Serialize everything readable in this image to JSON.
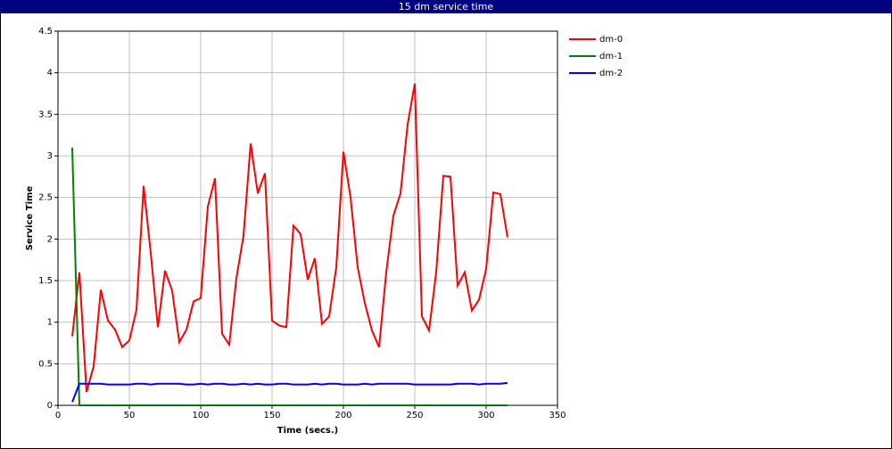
{
  "chart_data": {
    "type": "line",
    "title": "15 dm service time",
    "x_label": "Time (secs.)",
    "y_label": "Service Time",
    "x": [
      10,
      15,
      20,
      25,
      30,
      35,
      40,
      45,
      50,
      55,
      60,
      65,
      70,
      75,
      80,
      85,
      90,
      95,
      100,
      105,
      110,
      115,
      120,
      125,
      130,
      135,
      140,
      145,
      150,
      155,
      160,
      165,
      170,
      175,
      180,
      185,
      190,
      195,
      200,
      205,
      210,
      215,
      220,
      225,
      230,
      235,
      240,
      245,
      250,
      255,
      260,
      265,
      270,
      275,
      280,
      285,
      290,
      295,
      300,
      305,
      310,
      315
    ],
    "series": [
      {
        "name": "dm-0",
        "color": "#ff0000",
        "values": [
          0.83,
          1.6,
          0.16,
          0.47,
          1.39,
          1.02,
          0.91,
          0.7,
          0.78,
          1.15,
          2.64,
          1.83,
          0.94,
          1.62,
          1.38,
          0.76,
          0.91,
          1.25,
          1.29,
          2.39,
          2.73,
          0.86,
          0.73,
          1.53,
          2.04,
          3.15,
          2.55,
          2.79,
          1.02,
          0.96,
          0.94,
          2.16,
          2.06,
          1.51,
          1.77,
          0.98,
          1.07,
          1.66,
          3.05,
          2.5,
          1.66,
          1.23,
          0.9,
          0.7,
          1.6,
          2.28,
          2.55,
          3.38,
          3.87,
          1.07,
          0.9,
          1.6,
          2.76,
          2.75,
          1.44,
          1.6,
          1.14,
          1.27,
          1.64,
          2.56,
          2.54,
          2.02
        ]
      },
      {
        "name": "dm-1",
        "color": "#008000",
        "values": [
          3.1,
          0,
          0,
          0,
          0,
          0,
          0,
          0,
          0,
          0,
          0,
          0,
          0,
          0,
          0,
          0,
          0,
          0,
          0,
          0,
          0,
          0,
          0,
          0,
          0,
          0,
          0,
          0,
          0,
          0,
          0,
          0,
          0,
          0,
          0,
          0,
          0,
          0,
          0,
          0,
          0,
          0,
          0,
          0,
          0,
          0,
          0,
          0,
          0,
          0,
          0,
          0,
          0,
          0,
          0,
          0,
          0,
          0,
          0,
          0,
          0,
          0
        ]
      },
      {
        "name": "dm-2",
        "color": "#0000ff",
        "values": [
          0.04,
          0.26,
          0.26,
          0.26,
          0.26,
          0.25,
          0.25,
          0.25,
          0.25,
          0.26,
          0.26,
          0.25,
          0.26,
          0.26,
          0.26,
          0.26,
          0.25,
          0.25,
          0.26,
          0.25,
          0.26,
          0.26,
          0.25,
          0.25,
          0.26,
          0.25,
          0.26,
          0.25,
          0.25,
          0.26,
          0.26,
          0.25,
          0.25,
          0.25,
          0.26,
          0.25,
          0.26,
          0.26,
          0.25,
          0.25,
          0.25,
          0.26,
          0.25,
          0.26,
          0.26,
          0.26,
          0.26,
          0.26,
          0.25,
          0.25,
          0.25,
          0.25,
          0.25,
          0.25,
          0.26,
          0.26,
          0.26,
          0.25,
          0.26,
          0.26,
          0.26,
          0.27
        ]
      }
    ],
    "xlim": [
      0,
      350
    ],
    "ylim": [
      0,
      4.5
    ],
    "xticks": [
      0,
      50,
      100,
      150,
      200,
      250,
      300,
      350
    ],
    "yticks": [
      0,
      0.5,
      1,
      1.5,
      2,
      2.5,
      3,
      3.5,
      4,
      4.5
    ],
    "grid": true
  }
}
